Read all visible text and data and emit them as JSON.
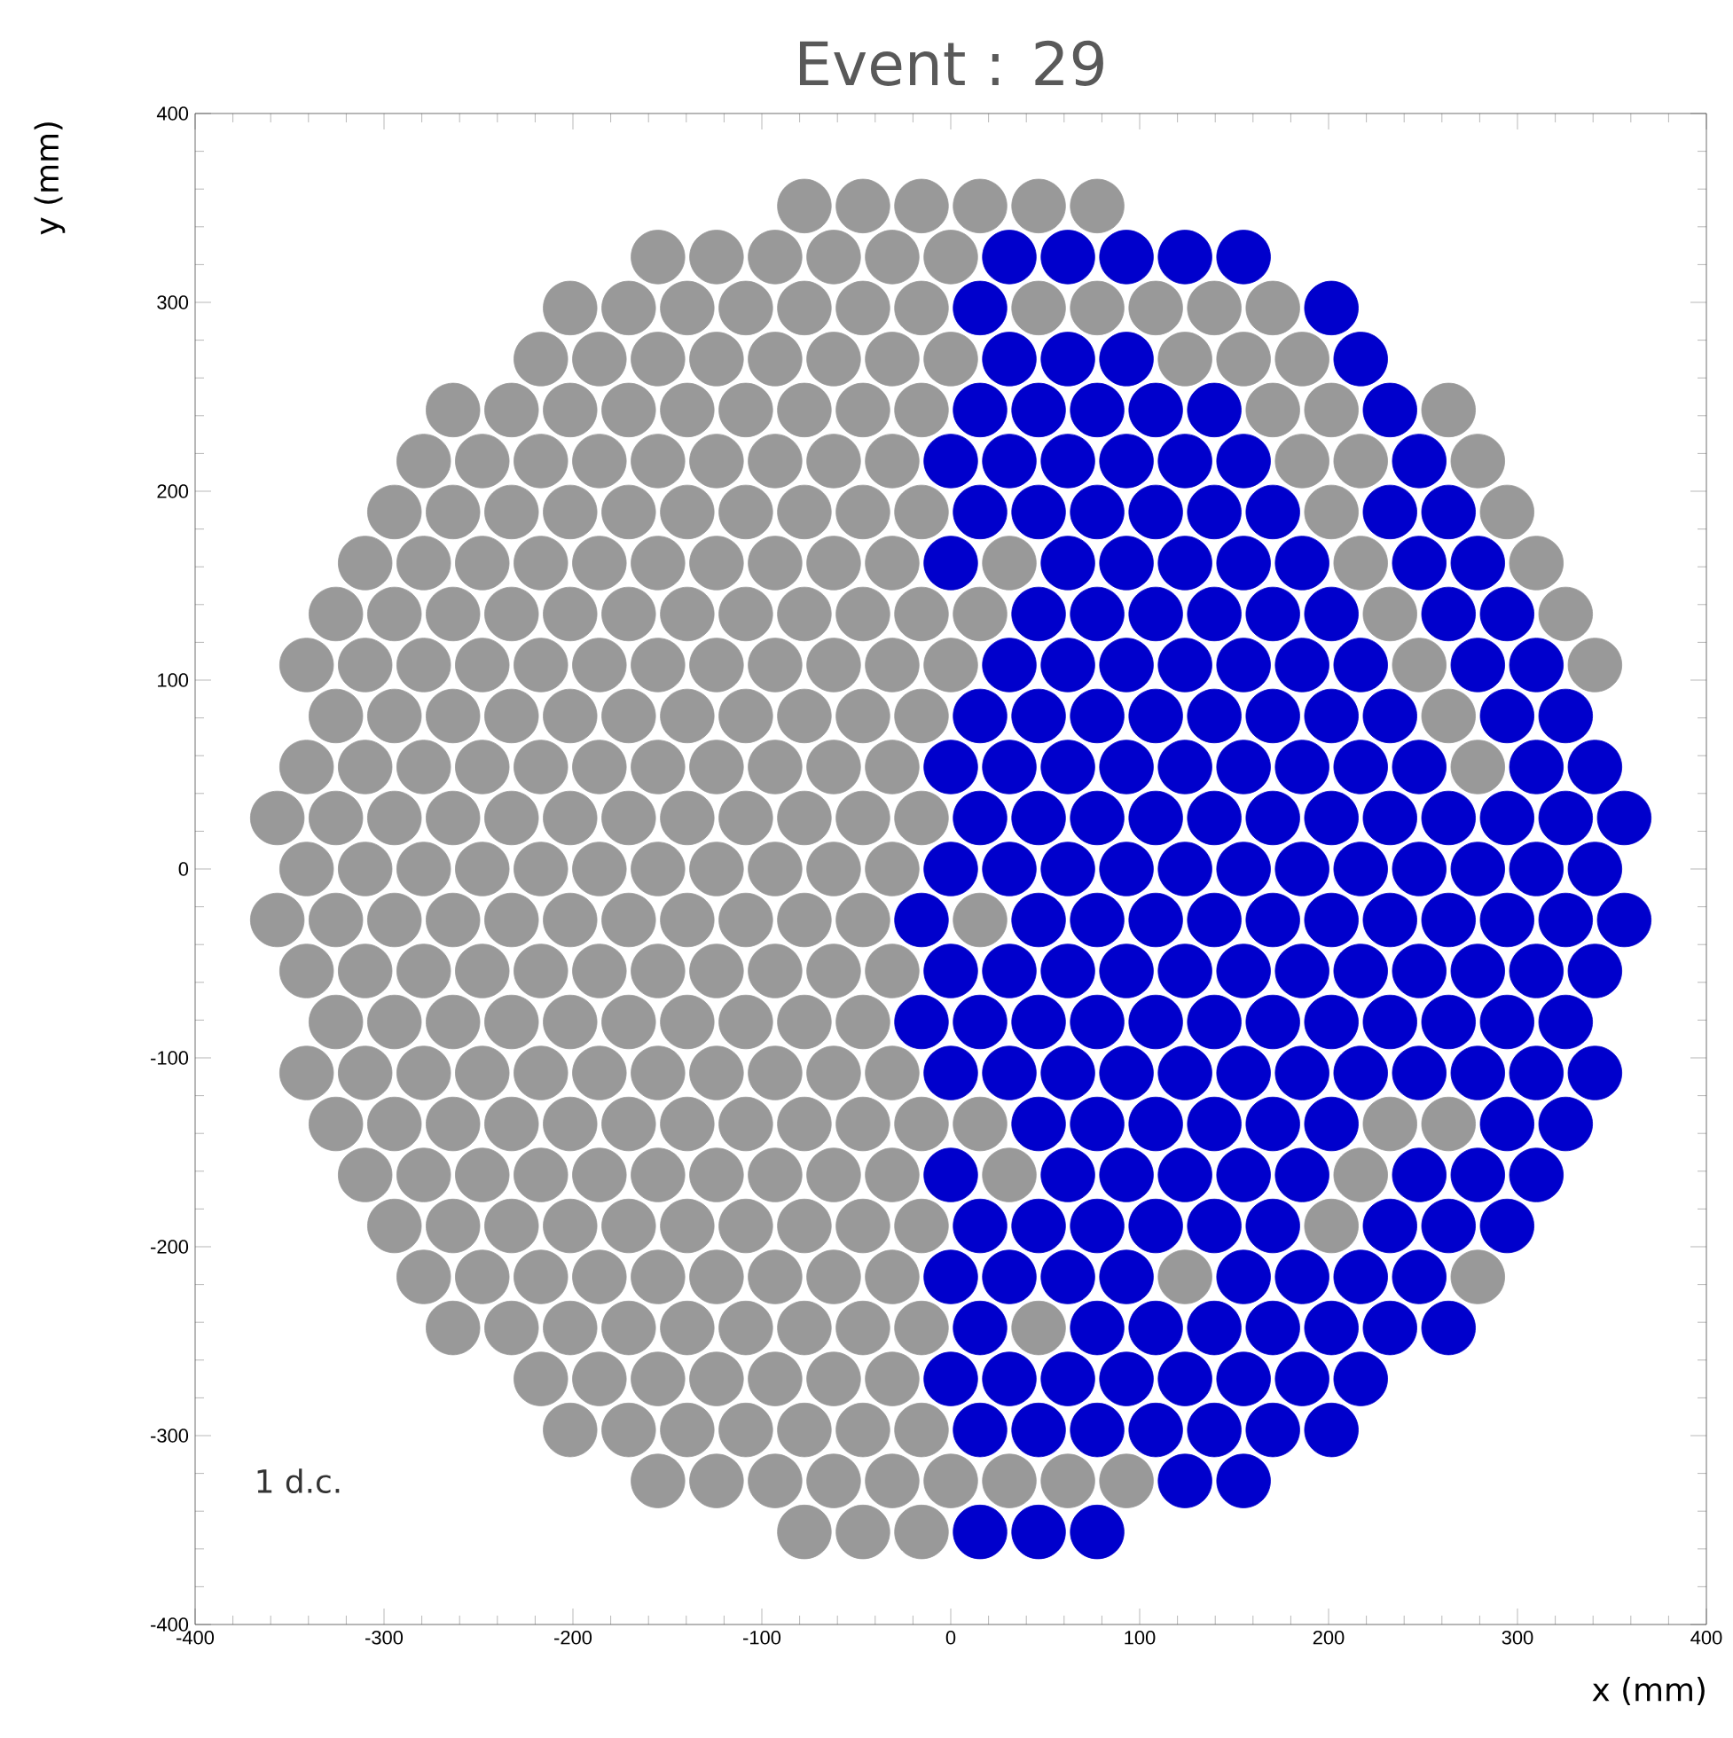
{
  "chart_data": {
    "type": "scatter",
    "title": "Event : 29",
    "xlabel": "x (mm)",
    "ylabel": "y (mm)",
    "annotations": [
      "1 d.c."
    ],
    "xlim": [
      -400,
      400
    ],
    "ylim": [
      -400,
      400
    ],
    "xticks": [
      -400,
      -300,
      -200,
      -100,
      0,
      100,
      200,
      300,
      400
    ],
    "yticks": [
      -400,
      -300,
      -200,
      -100,
      0,
      100,
      200,
      300,
      400
    ],
    "marker": "circle",
    "series": [
      {
        "color": "#999999",
        "x": [
          -77.5,
          -46.5,
          -15.5,
          15.5,
          46.5,
          77.5,
          -155,
          -124,
          -93,
          -62,
          -31,
          0,
          -201.5,
          -170.5,
          -139.5,
          -108.5,
          -77.5,
          -46.5,
          -15.5,
          46.5,
          77.5,
          108.5,
          139.5,
          170.5,
          -217,
          -186,
          -155,
          -124,
          -93,
          -62,
          -31,
          0,
          124,
          155,
          186,
          -263.5,
          -232.5,
          -201.5,
          -170.5,
          -139.5,
          -108.5,
          -77.5,
          -46.5,
          -15.5,
          170.5,
          201.5,
          263.5,
          -279,
          -248,
          -217,
          -186,
          -155,
          -124,
          -93,
          -62,
          -31,
          186,
          217,
          279,
          -294.5,
          -263.5,
          -232.5,
          -201.5,
          -170.5,
          -139.5,
          -108.5,
          -77.5,
          -46.5,
          -15.5,
          201.5,
          294.5,
          -310,
          -279,
          -248,
          -217,
          -186,
          -155,
          -124,
          -93,
          -62,
          -31,
          31,
          217,
          310,
          -325.5,
          -294.5,
          -263.5,
          -232.5,
          -201.5,
          -170.5,
          -139.5,
          -108.5,
          -77.5,
          -46.5,
          -15.5,
          15.5,
          232.5,
          325.5,
          -341,
          -310,
          -279,
          -248,
          -217,
          -186,
          -155,
          -124,
          -93,
          -62,
          -31,
          0,
          248,
          341,
          -325.5,
          -294.5,
          -263.5,
          -232.5,
          -201.5,
          -170.5,
          -139.5,
          -108.5,
          -77.5,
          -46.5,
          -15.5,
          263.5,
          -341,
          -310,
          -279,
          -248,
          -217,
          -186,
          -155,
          -124,
          -93,
          -62,
          -31,
          279,
          -356.5,
          -325.5,
          -294.5,
          -263.5,
          -232.5,
          -201.5,
          -170.5,
          -139.5,
          -108.5,
          -77.5,
          -46.5,
          -15.5,
          -341,
          -310,
          -279,
          -248,
          -217,
          -186,
          -155,
          -124,
          -93,
          -62,
          -31,
          -356.5,
          -325.5,
          -294.5,
          -263.5,
          -232.5,
          -201.5,
          -170.5,
          -139.5,
          -108.5,
          -77.5,
          -46.5,
          15.5,
          -341,
          -310,
          -279,
          -248,
          -217,
          -186,
          -155,
          -124,
          -93,
          -62,
          -31,
          -325.5,
          -294.5,
          -263.5,
          -232.5,
          -201.5,
          -170.5,
          -139.5,
          -108.5,
          -77.5,
          -46.5,
          -341,
          -310,
          -279,
          -248,
          -217,
          -186,
          -155,
          -124,
          -93,
          -62,
          -31,
          -325.5,
          -294.5,
          -263.5,
          -232.5,
          -201.5,
          -170.5,
          -139.5,
          -108.5,
          -77.5,
          -46.5,
          -15.5,
          15.5,
          232.5,
          263.5,
          -310,
          -279,
          -248,
          -217,
          -186,
          -155,
          -124,
          -93,
          -62,
          -31,
          31,
          217,
          -294.5,
          -263.5,
          -232.5,
          -201.5,
          -170.5,
          -139.5,
          -108.5,
          -77.5,
          -46.5,
          -15.5,
          201.5,
          -279,
          -248,
          -217,
          -186,
          -155,
          -124,
          -93,
          -62,
          -31,
          124,
          279,
          -263.5,
          -232.5,
          -201.5,
          -170.5,
          -139.5,
          -108.5,
          -77.5,
          -46.5,
          -15.5,
          46.5,
          -217,
          -186,
          -155,
          -124,
          -93,
          -62,
          -31,
          -201.5,
          -170.5,
          -139.5,
          -108.5,
          -77.5,
          -46.5,
          -15.5,
          -155,
          -124,
          -93,
          -62,
          -31,
          0,
          31,
          62,
          93,
          -77.5,
          -46.5,
          -15.5
        ],
        "values": [
          351,
          351,
          351,
          351,
          351,
          351,
          324,
          324,
          324,
          324,
          324,
          324,
          297,
          297,
          297,
          297,
          297,
          297,
          297,
          297,
          297,
          297,
          297,
          297,
          270,
          270,
          270,
          270,
          270,
          270,
          270,
          270,
          270,
          270,
          270,
          243,
          243,
          243,
          243,
          243,
          243,
          243,
          243,
          243,
          243,
          243,
          243,
          216,
          216,
          216,
          216,
          216,
          216,
          216,
          216,
          216,
          216,
          216,
          216,
          189,
          189,
          189,
          189,
          189,
          189,
          189,
          189,
          189,
          189,
          189,
          189,
          162,
          162,
          162,
          162,
          162,
          162,
          162,
          162,
          162,
          162,
          162,
          162,
          162,
          135,
          135,
          135,
          135,
          135,
          135,
          135,
          135,
          135,
          135,
          135,
          135,
          135,
          135,
          108,
          108,
          108,
          108,
          108,
          108,
          108,
          108,
          108,
          108,
          108,
          108,
          108,
          108,
          81,
          81,
          81,
          81,
          81,
          81,
          81,
          81,
          81,
          81,
          81,
          81,
          54,
          54,
          54,
          54,
          54,
          54,
          54,
          54,
          54,
          54,
          54,
          54,
          27,
          27,
          27,
          27,
          27,
          27,
          27,
          27,
          27,
          27,
          27,
          27,
          0,
          0,
          0,
          0,
          0,
          0,
          0,
          0,
          0,
          0,
          0,
          -27,
          -27,
          -27,
          -27,
          -27,
          -27,
          -27,
          -27,
          -27,
          -27,
          -27,
          -27,
          -54,
          -54,
          -54,
          -54,
          -54,
          -54,
          -54,
          -54,
          -54,
          -54,
          -54,
          -81,
          -81,
          -81,
          -81,
          -81,
          -81,
          -81,
          -81,
          -81,
          -81,
          -108,
          -108,
          -108,
          -108,
          -108,
          -108,
          -108,
          -108,
          -108,
          -108,
          -108,
          -135,
          -135,
          -135,
          -135,
          -135,
          -135,
          -135,
          -135,
          -135,
          -135,
          -135,
          -135,
          -135,
          -135,
          -162,
          -162,
          -162,
          -162,
          -162,
          -162,
          -162,
          -162,
          -162,
          -162,
          -162,
          -162,
          -189,
          -189,
          -189,
          -189,
          -189,
          -189,
          -189,
          -189,
          -189,
          -189,
          -189,
          -216,
          -216,
          -216,
          -216,
          -216,
          -216,
          -216,
          -216,
          -216,
          -216,
          -216,
          -243,
          -243,
          -243,
          -243,
          -243,
          -243,
          -243,
          -243,
          -243,
          -243,
          -270,
          -270,
          -270,
          -270,
          -270,
          -270,
          -270,
          -297,
          -297,
          -297,
          -297,
          -297,
          -297,
          -297,
          -324,
          -324,
          -324,
          -324,
          -324,
          -324,
          -324,
          -324,
          -324,
          -351,
          -351,
          -351
        ]
      },
      {
        "color": "#0000cc",
        "x": [
          31,
          62,
          93,
          124,
          155,
          15.5,
          201.5,
          31,
          62,
          93,
          217,
          15.5,
          46.5,
          77.5,
          108.5,
          139.5,
          232.5,
          0,
          31,
          62,
          93,
          124,
          155,
          248,
          15.5,
          46.5,
          77.5,
          108.5,
          139.5,
          170.5,
          232.5,
          263.5,
          0,
          62,
          93,
          124,
          155,
          186,
          248,
          279,
          46.5,
          77.5,
          108.5,
          139.5,
          170.5,
          201.5,
          263.5,
          294.5,
          31,
          62,
          93,
          124,
          155,
          186,
          217,
          279,
          310,
          15.5,
          46.5,
          77.5,
          108.5,
          139.5,
          170.5,
          201.5,
          232.5,
          294.5,
          325.5,
          0,
          31,
          62,
          93,
          124,
          155,
          186,
          217,
          248,
          310,
          341,
          15.5,
          46.5,
          77.5,
          108.5,
          139.5,
          170.5,
          201.5,
          232.5,
          263.5,
          294.5,
          325.5,
          356.5,
          0,
          31,
          62,
          93,
          124,
          155,
          186,
          217,
          248,
          279,
          310,
          341,
          -15.5,
          46.5,
          77.5,
          108.5,
          139.5,
          170.5,
          201.5,
          232.5,
          263.5,
          294.5,
          325.5,
          356.5,
          0,
          31,
          62,
          93,
          124,
          155,
          186,
          217,
          248,
          279,
          310,
          341,
          -15.5,
          15.5,
          46.5,
          77.5,
          108.5,
          139.5,
          170.5,
          201.5,
          232.5,
          263.5,
          294.5,
          325.5,
          0,
          31,
          62,
          93,
          124,
          155,
          186,
          217,
          248,
          279,
          310,
          341,
          46.5,
          77.5,
          108.5,
          139.5,
          170.5,
          201.5,
          294.5,
          325.5,
          0,
          62,
          93,
          124,
          155,
          186,
          248,
          279,
          310,
          15.5,
          46.5,
          77.5,
          108.5,
          139.5,
          170.5,
          232.5,
          263.5,
          294.5,
          0,
          31,
          62,
          93,
          155,
          186,
          217,
          248,
          15.5,
          77.5,
          108.5,
          139.5,
          170.5,
          201.5,
          232.5,
          263.5,
          0,
          31,
          62,
          93,
          124,
          155,
          186,
          217,
          15.5,
          46.5,
          77.5,
          108.5,
          139.5,
          170.5,
          201.5,
          124,
          155,
          15.5,
          46.5,
          77.5
        ],
        "values": [
          324,
          324,
          324,
          324,
          324,
          297,
          297,
          270,
          270,
          270,
          270,
          243,
          243,
          243,
          243,
          243,
          243,
          216,
          216,
          216,
          216,
          216,
          216,
          216,
          189,
          189,
          189,
          189,
          189,
          189,
          189,
          189,
          162,
          162,
          162,
          162,
          162,
          162,
          162,
          162,
          135,
          135,
          135,
          135,
          135,
          135,
          135,
          135,
          108,
          108,
          108,
          108,
          108,
          108,
          108,
          108,
          108,
          81,
          81,
          81,
          81,
          81,
          81,
          81,
          81,
          81,
          81,
          54,
          54,
          54,
          54,
          54,
          54,
          54,
          54,
          54,
          54,
          54,
          27,
          27,
          27,
          27,
          27,
          27,
          27,
          27,
          27,
          27,
          27,
          27,
          0,
          0,
          0,
          0,
          0,
          0,
          0,
          0,
          0,
          0,
          0,
          0,
          -27,
          -27,
          -27,
          -27,
          -27,
          -27,
          -27,
          -27,
          -27,
          -27,
          -27,
          -27,
          -54,
          -54,
          -54,
          -54,
          -54,
          -54,
          -54,
          -54,
          -54,
          -54,
          -54,
          -54,
          -81,
          -81,
          -81,
          -81,
          -81,
          -81,
          -81,
          -81,
          -81,
          -81,
          -81,
          -81,
          -108,
          -108,
          -108,
          -108,
          -108,
          -108,
          -108,
          -108,
          -108,
          -108,
          -108,
          -108,
          -135,
          -135,
          -135,
          -135,
          -135,
          -135,
          -135,
          -135,
          -162,
          -162,
          -162,
          -162,
          -162,
          -162,
          -162,
          -162,
          -162,
          -189,
          -189,
          -189,
          -189,
          -189,
          -189,
          -189,
          -189,
          -189,
          -216,
          -216,
          -216,
          -216,
          -216,
          -216,
          -216,
          -216,
          -243,
          -243,
          -243,
          -243,
          -243,
          -243,
          -243,
          -243,
          -270,
          -270,
          -270,
          -270,
          -270,
          -270,
          -270,
          -270,
          -297,
          -297,
          -297,
          -297,
          -297,
          -297,
          -297,
          -324,
          -324,
          -351,
          -351,
          -351
        ]
      }
    ]
  }
}
